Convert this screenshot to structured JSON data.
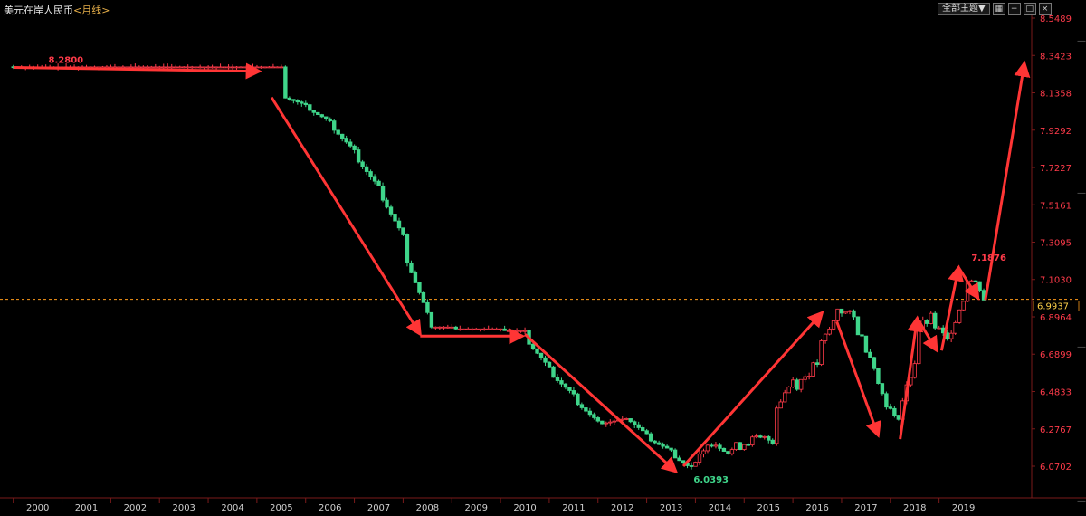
{
  "header": {
    "title": "美元在岸人民币",
    "period": "<月线>",
    "theme_button": "全部主题▼"
  },
  "toolbar_icons": [
    "grid-icon",
    "minus-icon",
    "maximize-icon",
    "close-icon"
  ],
  "colors": {
    "up": "#ff3b4a",
    "down": "#3fd58a",
    "arrow": "#ff3535",
    "current_line": "#ff9a1a",
    "axis_text": "#ff3b4a",
    "year_text": "#cfcfcf",
    "grid": "#3a1212",
    "low_label": "#3fd58a"
  },
  "chart_data": {
    "type": "candlestick",
    "y_ticks": [
      "8.5489",
      "8.3423",
      "8.1358",
      "7.9292",
      "7.7227",
      "7.5161",
      "7.3095",
      "7.1030",
      "6.8964",
      "6.6899",
      "6.4833",
      "6.2767",
      "6.0702"
    ],
    "x_ticks": [
      "2000",
      "2001",
      "2002",
      "2003",
      "2004",
      "2005",
      "2006",
      "2007",
      "2008",
      "2009",
      "2010",
      "2011",
      "2012",
      "2013",
      "2014",
      "2015",
      "2016",
      "2017",
      "2018",
      "2019"
    ],
    "current_price": "6.9937",
    "annotations": [
      {
        "label": "8.2800",
        "x": 2000.2,
        "y": 8.28
      },
      {
        "label": "7.1876",
        "x": 2019.55,
        "y": 7.1876
      },
      {
        "label": "6.0393",
        "x": 2013.85,
        "y": 6.0393
      }
    ],
    "series": [
      {
        "values": [
          [
            2000.0,
            8.28,
            8.279
          ],
          [
            2005.5,
            8.279,
            8.277
          ],
          [
            2005.55,
            8.277,
            8.11
          ],
          [
            2006.0,
            8.07,
            8.05
          ],
          [
            2006.5,
            7.98,
            7.95
          ],
          [
            2007.0,
            7.82,
            7.78
          ],
          [
            2007.5,
            7.62,
            7.58
          ],
          [
            2008.0,
            7.35,
            7.25
          ],
          [
            2008.5,
            6.92,
            6.84
          ],
          [
            2009.0,
            6.84,
            6.83
          ],
          [
            2010.0,
            6.83,
            6.82
          ],
          [
            2010.5,
            6.82,
            6.77
          ],
          [
            2011.0,
            6.62,
            6.58
          ],
          [
            2011.5,
            6.47,
            6.43
          ],
          [
            2012.0,
            6.32,
            6.3
          ],
          [
            2012.5,
            6.33,
            6.35
          ],
          [
            2013.0,
            6.25,
            6.22
          ],
          [
            2013.5,
            6.16,
            6.13
          ],
          [
            2013.85,
            6.07,
            6.05
          ],
          [
            2014.2,
            6.15,
            6.22
          ],
          [
            2014.6,
            6.18,
            6.14
          ],
          [
            2015.0,
            6.2,
            6.21
          ],
          [
            2015.6,
            6.22,
            6.38
          ],
          [
            2016.0,
            6.55,
            6.5
          ],
          [
            2016.5,
            6.64,
            6.7
          ],
          [
            2016.9,
            6.9,
            6.95
          ],
          [
            2017.3,
            6.88,
            6.84
          ],
          [
            2017.7,
            6.62,
            6.55
          ],
          [
            2018.1,
            6.32,
            6.3
          ],
          [
            2018.5,
            6.65,
            6.82
          ],
          [
            2018.9,
            6.9,
            6.85
          ],
          [
            2019.2,
            6.75,
            6.8
          ],
          [
            2019.55,
            7.03,
            7.12
          ],
          [
            2019.9,
            7.05,
            7.0
          ]
        ]
      }
    ],
    "arrows": [
      {
        "from": [
          2000.0,
          8.276
        ],
        "to": [
          2005.05,
          8.255
        ]
      },
      {
        "from": [
          2005.3,
          8.11
        ],
        "to": [
          2008.35,
          6.8
        ]
      },
      {
        "from": [
          2008.35,
          6.79
        ],
        "to": [
          2010.45,
          6.79
        ]
      },
      {
        "from": [
          2010.5,
          6.8
        ],
        "to": [
          2013.6,
          6.04
        ]
      },
      {
        "from": [
          2013.75,
          6.07
        ],
        "to": [
          2016.6,
          6.92
        ]
      },
      {
        "from": [
          2016.9,
          6.87
        ],
        "to": [
          2017.75,
          6.24
        ]
      },
      {
        "from": [
          2018.2,
          6.22
        ],
        "to": [
          2018.55,
          6.89
        ]
      },
      {
        "from": [
          2018.55,
          6.89
        ],
        "to": [
          2018.95,
          6.71
        ]
      },
      {
        "from": [
          2019.05,
          6.71
        ],
        "to": [
          2019.4,
          7.17
        ]
      },
      {
        "from": [
          2019.4,
          7.17
        ],
        "to": [
          2019.8,
          7.0
        ]
      },
      {
        "from": [
          2019.95,
          6.99
        ],
        "to": [
          2020.75,
          8.3
        ]
      }
    ]
  }
}
